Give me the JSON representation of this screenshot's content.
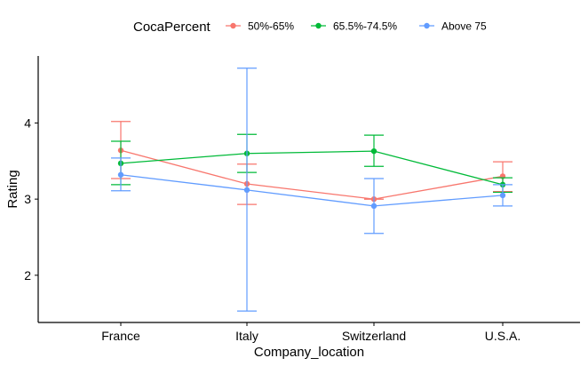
{
  "chart_data": {
    "type": "line",
    "title": "",
    "xlabel": "Company_location",
    "ylabel": "Rating",
    "categories": [
      "France",
      "Italy",
      "Switzerland",
      "U.S.A."
    ],
    "ylim": [
      1.38,
      4.88
    ],
    "yticks": [
      2,
      3,
      4
    ],
    "grid": false,
    "legend": {
      "title": "CocaPercent",
      "placement": "top"
    },
    "series": [
      {
        "name": "50%-65%",
        "color": "#F8766D",
        "values": [
          3.64,
          3.2,
          3.0,
          3.3
        ],
        "error_low": [
          3.27,
          2.93,
          3.0,
          3.1
        ],
        "error_high": [
          4.02,
          3.46,
          3.0,
          3.49
        ]
      },
      {
        "name": "65.5%-74.5%",
        "color": "#00BA38",
        "values": [
          3.47,
          3.6,
          3.63,
          3.19
        ],
        "error_low": [
          3.19,
          3.35,
          3.43,
          3.09
        ],
        "error_high": [
          3.76,
          3.85,
          3.84,
          3.28
        ]
      },
      {
        "name": "Above 75",
        "color": "#619CFF",
        "values": [
          3.32,
          3.12,
          2.91,
          3.05
        ],
        "error_low": [
          3.11,
          1.53,
          2.55,
          2.91
        ],
        "error_high": [
          3.54,
          4.72,
          3.27,
          3.19
        ]
      }
    ]
  }
}
